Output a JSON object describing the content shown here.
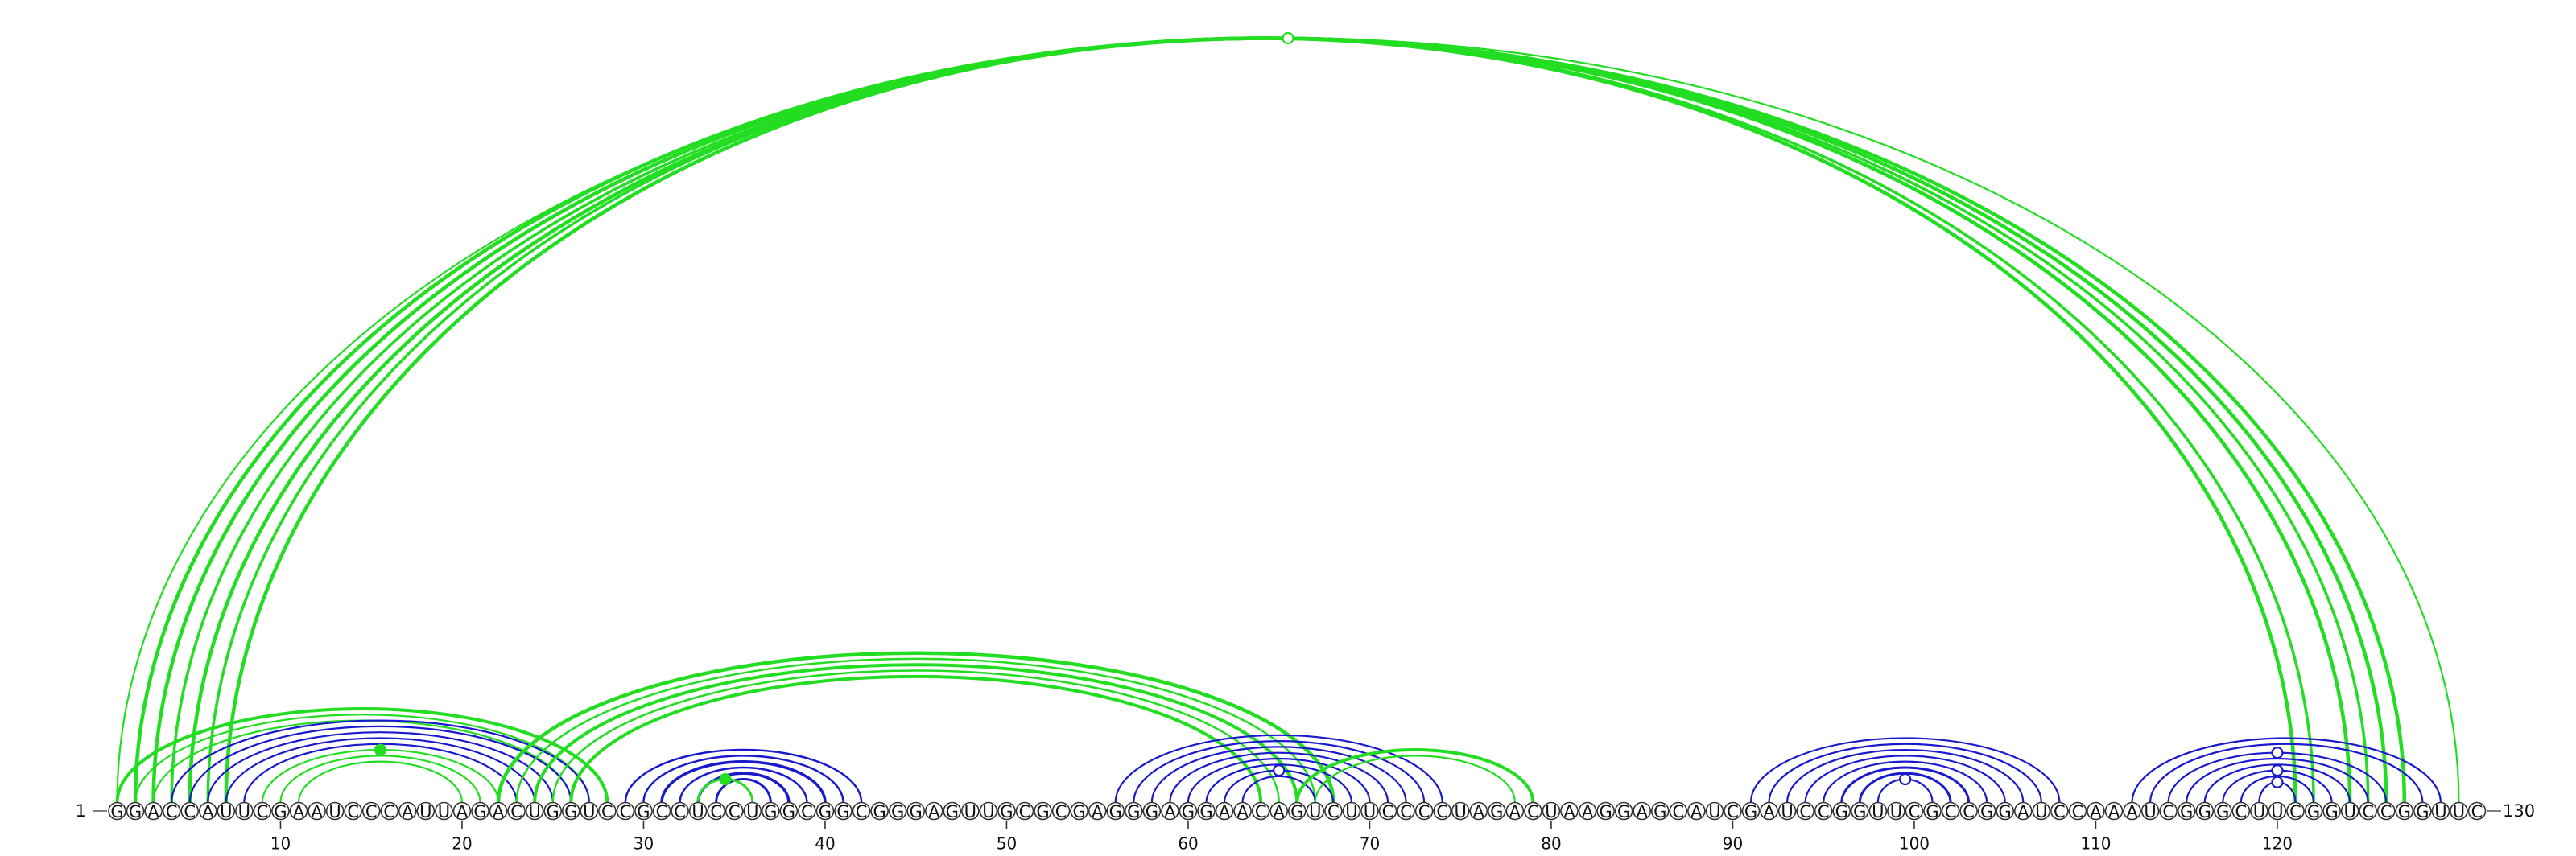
{
  "sequence": "GGACCAUUCGAAUCCCAUUAGACUGGUCCGCCUCCUGGCGGCGGGAGUUGCGCGAGGGAGGAACAGUCUUCCCCUAGACUAAGGAGCAUCGAUCCGGUUCGCCGGAUCCAAAUCGGGCUUCGGUCCGGUUC",
  "start_label": "1",
  "end_label": "130",
  "ticks": [
    10,
    20,
    30,
    40,
    50,
    60,
    70,
    80,
    90,
    100,
    110,
    120
  ],
  "colors": {
    "blue": "#1a1acc",
    "green": "#22dd22"
  },
  "upper_arcs": [
    {
      "i": 1,
      "j": 130,
      "color": "green",
      "width": 2.2
    },
    {
      "i": 2,
      "j": 127,
      "color": "green",
      "width": 4.5
    },
    {
      "i": 3,
      "j": 126,
      "color": "green",
      "width": 4.5
    },
    {
      "i": 4,
      "j": 125,
      "color": "green",
      "width": 3.5
    },
    {
      "i": 5,
      "j": 124,
      "color": "green",
      "width": 4.5
    },
    {
      "i": 6,
      "j": 122,
      "color": "green",
      "width": 3.5
    },
    {
      "i": 7,
      "j": 121,
      "color": "green",
      "width": 4.5
    },
    {
      "i": 1,
      "j": 28,
      "color": "green",
      "width": 4.0
    },
    {
      "i": 2,
      "j": 27,
      "color": "green",
      "width": 2.2
    },
    {
      "i": 3,
      "j": 26,
      "color": "green",
      "width": 2.2
    },
    {
      "i": 4,
      "j": 27,
      "color": "blue",
      "width": 2.2
    },
    {
      "i": 5,
      "j": 26,
      "color": "blue",
      "width": 2.2
    },
    {
      "i": 6,
      "j": 25,
      "color": "blue",
      "width": 2.2
    },
    {
      "i": 7,
      "j": 24,
      "color": "blue",
      "width": 2.2
    },
    {
      "i": 8,
      "j": 23,
      "color": "blue",
      "width": 2.2
    },
    {
      "i": 9,
      "j": 22,
      "color": "green",
      "width": 2.2
    },
    {
      "i": 10,
      "j": 21,
      "color": "green",
      "width": 2.2
    },
    {
      "i": 11,
      "j": 20,
      "color": "green",
      "width": 2.2
    },
    {
      "i": 22,
      "j": 68,
      "color": "green",
      "width": 4.5
    },
    {
      "i": 23,
      "j": 67,
      "color": "green",
      "width": 2.5
    },
    {
      "i": 24,
      "j": 66,
      "color": "green",
      "width": 4.0
    },
    {
      "i": 25,
      "j": 65,
      "color": "green",
      "width": 2.5
    },
    {
      "i": 26,
      "j": 64,
      "color": "green",
      "width": 4.0
    },
    {
      "i": 29,
      "j": 42,
      "color": "blue",
      "width": 2.5
    },
    {
      "i": 30,
      "j": 41,
      "color": "blue",
      "width": 2.5
    },
    {
      "i": 31,
      "j": 40,
      "color": "blue",
      "width": 3.5
    },
    {
      "i": 32,
      "j": 39,
      "color": "blue",
      "width": 2.5
    },
    {
      "i": 33,
      "j": 38,
      "color": "blue",
      "width": 3.5
    },
    {
      "i": 34,
      "j": 37,
      "color": "blue",
      "width": 3.0
    },
    {
      "i": 33,
      "j": 36,
      "color": "green",
      "width": 3.0
    },
    {
      "i": 56,
      "j": 74,
      "color": "blue",
      "width": 2.2
    },
    {
      "i": 57,
      "j": 73,
      "color": "blue",
      "width": 2.2
    },
    {
      "i": 58,
      "j": 72,
      "color": "blue",
      "width": 2.2
    },
    {
      "i": 59,
      "j": 71,
      "color": "blue",
      "width": 2.2
    },
    {
      "i": 60,
      "j": 70,
      "color": "blue",
      "width": 2.2
    },
    {
      "i": 61,
      "j": 69,
      "color": "blue",
      "width": 2.2
    },
    {
      "i": 62,
      "j": 68,
      "color": "blue",
      "width": 2.2
    },
    {
      "i": 63,
      "j": 67,
      "color": "blue",
      "width": 2.2
    },
    {
      "i": 66,
      "j": 79,
      "color": "green",
      "width": 4.0
    },
    {
      "i": 67,
      "j": 78,
      "color": "green",
      "width": 2.2
    },
    {
      "i": 91,
      "j": 108,
      "color": "blue",
      "width": 2.2
    },
    {
      "i": 92,
      "j": 107,
      "color": "blue",
      "width": 2.2
    },
    {
      "i": 93,
      "j": 106,
      "color": "blue",
      "width": 2.2
    },
    {
      "i": 94,
      "j": 105,
      "color": "blue",
      "width": 2.2
    },
    {
      "i": 95,
      "j": 104,
      "color": "blue",
      "width": 2.2
    },
    {
      "i": 96,
      "j": 103,
      "color": "blue",
      "width": 3.0
    },
    {
      "i": 97,
      "j": 102,
      "color": "blue",
      "width": 3.0
    },
    {
      "i": 98,
      "j": 101,
      "color": "blue",
      "width": 2.2
    },
    {
      "i": 112,
      "j": 129,
      "color": "blue",
      "width": 2.2
    },
    {
      "i": 113,
      "j": 128,
      "color": "blue",
      "width": 2.2
    },
    {
      "i": 114,
      "j": 126,
      "color": "blue",
      "width": 2.2
    },
    {
      "i": 115,
      "j": 125,
      "color": "blue",
      "width": 2.2
    },
    {
      "i": 116,
      "j": 124,
      "color": "blue",
      "width": 2.2
    },
    {
      "i": 117,
      "j": 123,
      "color": "blue",
      "width": 2.2
    },
    {
      "i": 118,
      "j": 122,
      "color": "blue",
      "width": 2.2
    },
    {
      "i": 119,
      "j": 121,
      "color": "blue",
      "width": 2.2
    }
  ],
  "markers": [
    {
      "pos": 65.5,
      "height": 0.985,
      "color": "green",
      "filled": false,
      "arc_i": 1,
      "arc_j": 130
    },
    {
      "pos": 15.0,
      "height": 0.68,
      "color": "green",
      "filled": true,
      "arc_i": 9,
      "arc_j": 22
    },
    {
      "pos": 34.5,
      "height": 0.8,
      "color": "green",
      "filled": true,
      "arc_i": 33,
      "arc_j": 36
    },
    {
      "pos": 65.0,
      "height": 0.72,
      "color": "blue",
      "filled": false,
      "arc_i": 62,
      "arc_j": 68
    },
    {
      "pos": 99.5,
      "height": 0.75,
      "color": "blue",
      "filled": false,
      "arc_i": 98,
      "arc_j": 101
    },
    {
      "pos": 120.0,
      "height": 0.93,
      "color": "blue",
      "filled": false,
      "arc_i": 114,
      "arc_j": 126
    },
    {
      "pos": 120.0,
      "height": 0.6,
      "color": "blue",
      "filled": false,
      "arc_i": 117,
      "arc_j": 123
    },
    {
      "pos": 120.0,
      "height": 0.85,
      "color": "blue",
      "filled": false,
      "arc_i": 119,
      "arc_j": 121
    }
  ]
}
